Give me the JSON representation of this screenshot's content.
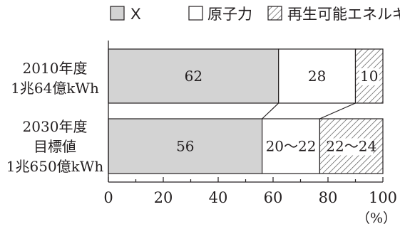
{
  "chart_data": {
    "type": "bar",
    "orientation": "horizontal",
    "stacked": true,
    "categories": [
      [
        "2010年度",
        "1兆64億kWh"
      ],
      [
        "2030年度",
        "目標値",
        "1兆650億kWh"
      ]
    ],
    "series": [
      {
        "name": "X",
        "values": [
          62,
          56
        ],
        "labels": [
          "62",
          "56"
        ],
        "pattern": "solid",
        "color": "#d3d3d3"
      },
      {
        "name": "原子力",
        "values": [
          28,
          21
        ],
        "labels": [
          "28",
          "20〜22"
        ],
        "pattern": "blank",
        "color": "#ffffff"
      },
      {
        "name": "再生可能エネルギー",
        "values": [
          10,
          23
        ],
        "labels": [
          "10",
          "22〜24"
        ],
        "pattern": "hatch",
        "color": "#ffffff"
      }
    ],
    "xlim": [
      0,
      100
    ],
    "xticks": [
      0,
      20,
      40,
      60,
      80,
      100
    ],
    "tick_labels": [
      "0",
      "20",
      "40",
      "60",
      "80",
      "100"
    ],
    "unit_label": "（%）",
    "legend_position": "top",
    "connector_lines": true,
    "grid": false,
    "bar_stroke": "#231f20"
  }
}
